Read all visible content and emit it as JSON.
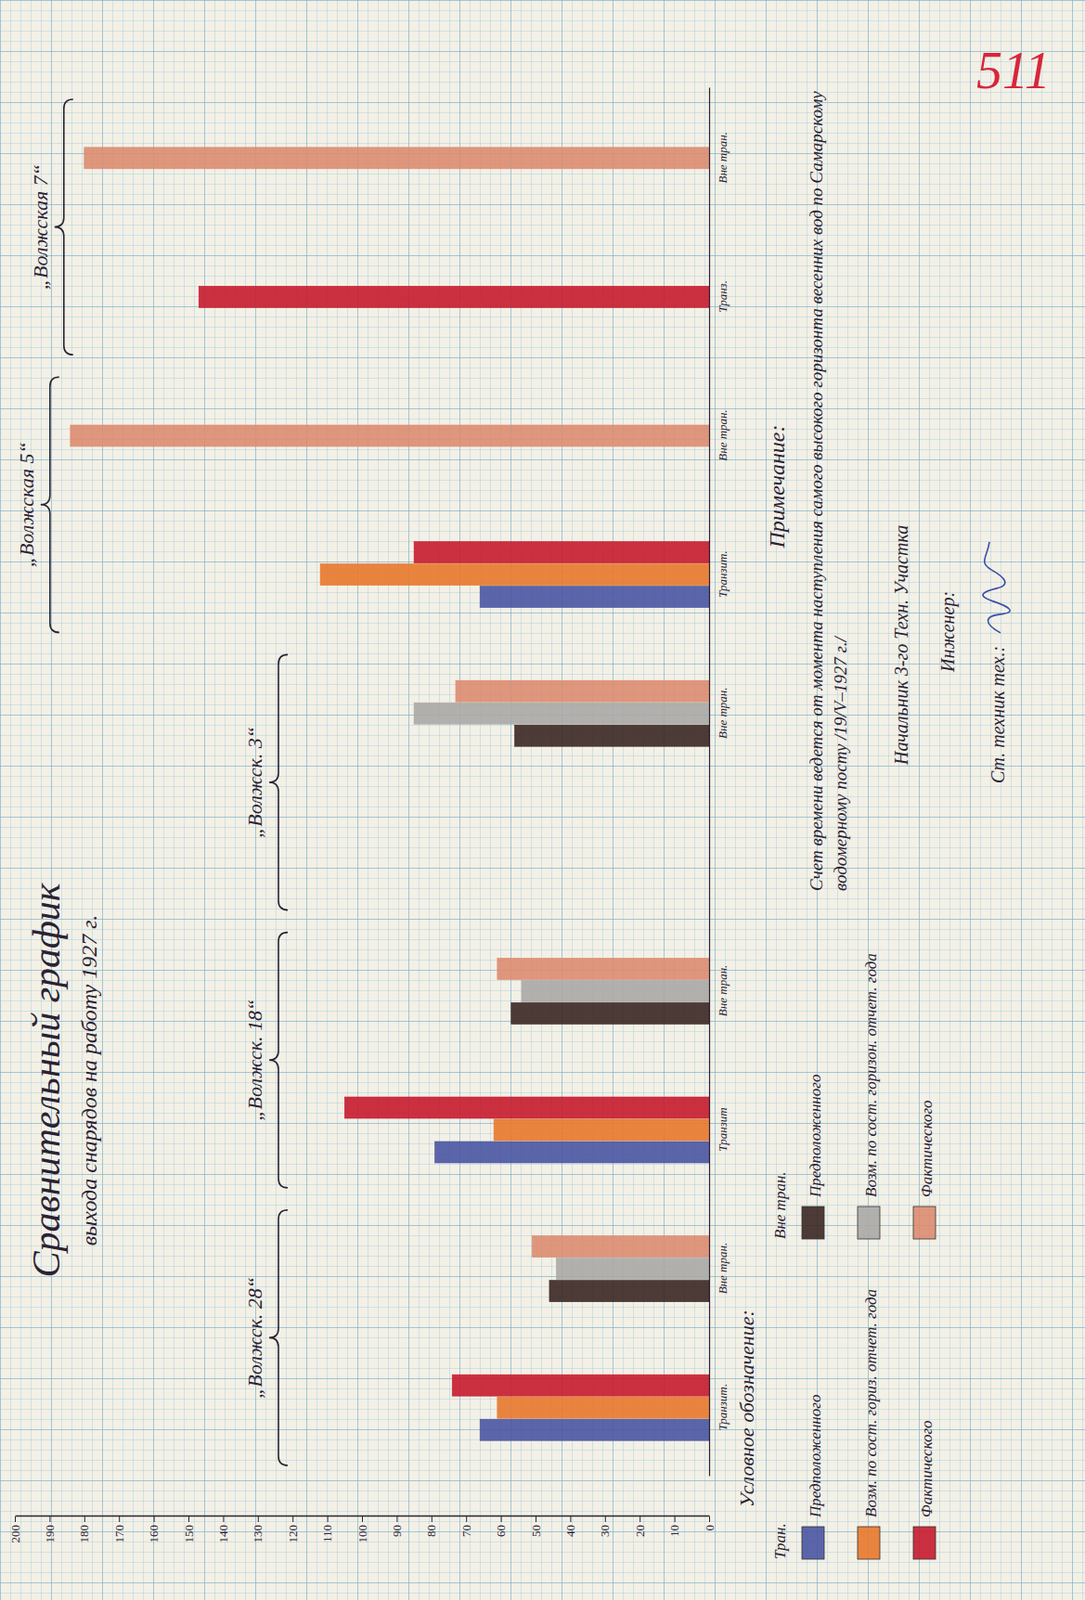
{
  "chart_data": {
    "type": "bar",
    "title": "Сравнительный график",
    "subtitle": "выхода снарядов на работу 1927 г.",
    "orientation": "horizontal",
    "groups": [
      {
        "label": "„Волжск. 28“",
        "categories": [
          "Транзит.",
          "Вне тран."
        ]
      },
      {
        "label": "„Волжск. 18“",
        "categories": [
          "Транзит",
          "Вне тран."
        ]
      },
      {
        "label": "„Волжск. 3“",
        "categories": [
          null,
          "Вне тран."
        ]
      },
      {
        "label": "„Волжская 5“",
        "categories": [
          "Транзит.",
          "Вне тран."
        ]
      },
      {
        "label": "„Волжская 7“",
        "categories": [
          "Транз.",
          "Вне тран."
        ]
      }
    ],
    "series": [
      {
        "name": "Предположенного",
        "group": "Тран.",
        "color": "#4a55a2",
        "values": [
          66,
          null,
          79,
          null,
          null,
          null,
          66,
          null,
          null,
          null
        ]
      },
      {
        "name": "Возм. по сост. гориз. отчет. года",
        "group": "Тран.",
        "color": "#e8782c",
        "values": [
          61,
          null,
          62,
          null,
          null,
          null,
          112,
          null,
          null,
          null
        ]
      },
      {
        "name": "Фактического",
        "group": "Тран.",
        "color": "#c71b2e",
        "values": [
          74,
          null,
          105,
          null,
          null,
          null,
          85,
          null,
          147,
          null
        ]
      },
      {
        "name": "Предположенного",
        "group": "Вне тран.",
        "color": "#3b2723",
        "values": [
          null,
          46,
          null,
          57,
          null,
          56,
          null,
          null,
          null,
          null
        ]
      },
      {
        "name": "Возм. по сост. горизон. отчет. года",
        "group": "Вне тран.",
        "color": "#aaa8a6",
        "values": [
          null,
          44,
          null,
          54,
          null,
          85,
          null,
          null,
          null,
          null
        ]
      },
      {
        "name": "Фактического",
        "group": "Вне тран.",
        "color": "#dc8c70",
        "values": [
          null,
          51,
          null,
          61,
          null,
          73,
          null,
          184,
          null,
          180
        ]
      }
    ],
    "ylim": [
      0,
      200
    ],
    "yticks": [
      0,
      10,
      20,
      30,
      40,
      50,
      60,
      70,
      80,
      90,
      100,
      110,
      120,
      130,
      140,
      150,
      160,
      170,
      180,
      190,
      200
    ],
    "legend": "bottom-right",
    "legend_title": "Условное обозначение:",
    "annotations": {
      "note_title": "Примечание:",
      "note": "Счет времени ведется от момента наступления самого высокого горизонта весенних вод по Самарскому водомерному посту /19/V–1927 г./",
      "signatures": [
        "Начальник 3-го Техн. Участка",
        "Инженер:",
        "Ст. техник тех.:"
      ],
      "page_number": "511"
    }
  }
}
